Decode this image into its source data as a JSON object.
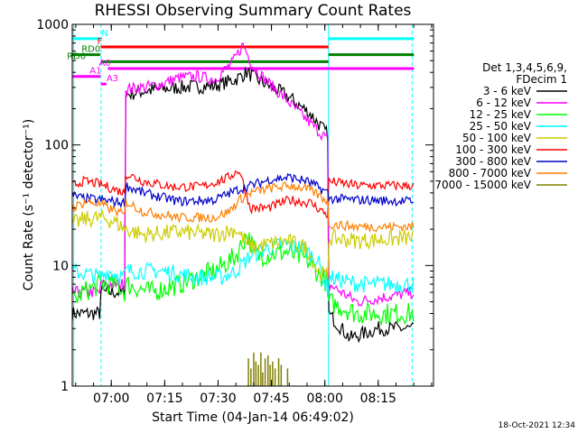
{
  "chart_data": {
    "type": "line",
    "title": "RHESSI Observing Summary Count Rates",
    "xlabel": "Start Time (04-Jan-14 06:49:02)",
    "ylabel": "Count Rate (s⁻¹ detector⁻¹)",
    "yscale": "log",
    "ylim": [
      1,
      1000
    ],
    "xlim_minutes_from_start": [
      0,
      101.5
    ],
    "x_ticks": [
      {
        "label": "07:00",
        "minute": 10.97
      },
      {
        "label": "07:15",
        "minute": 25.97
      },
      {
        "label": "07:30",
        "minute": 40.97
      },
      {
        "label": "07:45",
        "minute": 55.97
      },
      {
        "label": "08:00",
        "minute": 70.97
      },
      {
        "label": "08:15",
        "minute": 85.97
      }
    ],
    "y_ticks": [
      {
        "label": "1",
        "value": 1
      },
      {
        "label": "10",
        "value": 10
      },
      {
        "label": "100",
        "value": 100
      },
      {
        "label": "1000",
        "value": 1000
      }
    ],
    "legend": {
      "header_line1": "Det 1,3,4,5,6,9,",
      "header_line2": "FDecim 1",
      "placement": "right"
    },
    "series": [
      {
        "name": "3 - 6 keV",
        "color": "#000000",
        "noise": 0.06,
        "points": [
          [
            0,
            4
          ],
          [
            7.9,
            4
          ],
          [
            8,
            6
          ],
          [
            14.9,
            6
          ],
          [
            15,
            260
          ],
          [
            20,
            280
          ],
          [
            30,
            300
          ],
          [
            40,
            310
          ],
          [
            46,
            350
          ],
          [
            49,
            400
          ],
          [
            52,
            350
          ],
          [
            60,
            260
          ],
          [
            67,
            180
          ],
          [
            71.9,
            120
          ],
          [
            72,
            4
          ],
          [
            78,
            2.5
          ],
          [
            86,
            3
          ],
          [
            94,
            3
          ],
          [
            96,
            3
          ]
        ]
      },
      {
        "name": "6 - 12 keV",
        "color": "#ff00ff",
        "noise": 0.05,
        "points": [
          [
            0,
            6
          ],
          [
            7.9,
            6
          ],
          [
            8,
            7
          ],
          [
            14.9,
            7
          ],
          [
            15,
            290
          ],
          [
            20,
            300
          ],
          [
            25,
            320
          ],
          [
            30,
            360
          ],
          [
            35,
            370
          ],
          [
            40,
            350
          ],
          [
            45,
            480
          ],
          [
            48,
            680
          ],
          [
            51,
            440
          ],
          [
            55,
            330
          ],
          [
            60,
            240
          ],
          [
            66,
            160
          ],
          [
            71.9,
            110
          ],
          [
            72,
            7
          ],
          [
            80,
            5
          ],
          [
            96,
            6
          ]
        ]
      },
      {
        "name": "12 - 25 keV",
        "color": "#00ff00",
        "noise": 0.09,
        "points": [
          [
            0,
            5
          ],
          [
            3,
            6
          ],
          [
            8,
            7
          ],
          [
            12,
            7
          ],
          [
            14.9,
            6
          ],
          [
            15,
            7
          ],
          [
            22,
            6
          ],
          [
            30,
            7
          ],
          [
            40,
            9
          ],
          [
            46,
            12
          ],
          [
            49,
            18
          ],
          [
            52,
            12
          ],
          [
            60,
            13
          ],
          [
            66,
            11
          ],
          [
            71.9,
            7
          ],
          [
            72,
            5
          ],
          [
            80,
            4
          ],
          [
            96,
            4
          ]
        ]
      },
      {
        "name": "25 - 50 keV",
        "color": "#00ffff",
        "noise": 0.07,
        "points": [
          [
            0,
            9
          ],
          [
            4,
            8.5
          ],
          [
            8,
            8
          ],
          [
            10,
            9
          ],
          [
            14.9,
            8
          ],
          [
            15,
            9
          ],
          [
            25,
            9
          ],
          [
            35,
            8
          ],
          [
            42,
            8
          ],
          [
            46,
            9
          ],
          [
            50,
            12
          ],
          [
            55,
            14
          ],
          [
            60,
            15
          ],
          [
            65,
            14
          ],
          [
            69,
            11
          ],
          [
            71.9,
            6
          ],
          [
            72,
            8
          ],
          [
            80,
            7
          ],
          [
            96,
            7
          ]
        ]
      },
      {
        "name": "50 - 100 keV",
        "color": "#cccc00",
        "noise": 0.07,
        "points": [
          [
            0,
            22
          ],
          [
            3,
            24
          ],
          [
            8,
            25
          ],
          [
            12,
            23
          ],
          [
            14.9,
            20
          ],
          [
            15,
            20
          ],
          [
            20,
            18
          ],
          [
            30,
            19
          ],
          [
            40,
            18
          ],
          [
            46,
            20
          ],
          [
            50,
            14
          ],
          [
            55,
            15
          ],
          [
            60,
            16
          ],
          [
            66,
            14
          ],
          [
            69,
            9
          ],
          [
            71.9,
            8
          ],
          [
            72,
            17
          ],
          [
            80,
            16
          ],
          [
            96,
            17
          ]
        ]
      },
      {
        "name": "100 - 300 keV",
        "color": "#ff0000",
        "noise": 0.04,
        "points": [
          [
            0,
            46
          ],
          [
            3,
            50
          ],
          [
            7,
            48
          ],
          [
            14.9,
            40
          ],
          [
            15,
            58
          ],
          [
            20,
            50
          ],
          [
            28,
            45
          ],
          [
            36,
            45
          ],
          [
            43,
            52
          ],
          [
            47,
            62
          ],
          [
            50,
            30
          ],
          [
            55,
            30
          ],
          [
            61,
            35
          ],
          [
            67,
            33
          ],
          [
            71.9,
            26
          ],
          [
            72,
            50
          ],
          [
            80,
            46
          ],
          [
            96,
            46
          ]
        ]
      },
      {
        "name": "300 - 800 keV",
        "color": "#0000cc",
        "noise": 0.04,
        "points": [
          [
            0,
            38
          ],
          [
            3,
            36
          ],
          [
            8,
            35
          ],
          [
            14.9,
            33
          ],
          [
            15,
            46
          ],
          [
            20,
            40
          ],
          [
            30,
            34
          ],
          [
            40,
            35
          ],
          [
            46,
            42
          ],
          [
            50,
            46
          ],
          [
            56,
            52
          ],
          [
            61,
            54
          ],
          [
            66,
            50
          ],
          [
            71.9,
            40
          ],
          [
            72,
            36
          ],
          [
            80,
            35
          ],
          [
            96,
            34
          ]
        ]
      },
      {
        "name": "800 - 7000 keV",
        "color": "#ff7f00",
        "noise": 0.04,
        "points": [
          [
            0,
            30
          ],
          [
            4,
            34
          ],
          [
            8,
            32
          ],
          [
            14.9,
            26
          ],
          [
            15,
            34
          ],
          [
            20,
            28
          ],
          [
            30,
            25
          ],
          [
            40,
            25
          ],
          [
            44,
            28
          ],
          [
            47,
            35
          ],
          [
            50,
            40
          ],
          [
            56,
            44
          ],
          [
            62,
            46
          ],
          [
            67,
            42
          ],
          [
            71.9,
            34
          ],
          [
            72,
            22
          ],
          [
            80,
            21
          ],
          [
            96,
            21
          ]
        ]
      },
      {
        "name": "7000 - 15000 keV",
        "color": "#808000",
        "noise": 0,
        "points": []
      }
    ],
    "bursts_7000_15000": [
      [
        49.5,
        1.7
      ],
      [
        50.2,
        1.4
      ],
      [
        51,
        1.9
      ],
      [
        51.6,
        1.6
      ],
      [
        52.3,
        1.5
      ],
      [
        53,
        1.9
      ],
      [
        53.5,
        1.3
      ],
      [
        54.2,
        1.7
      ],
      [
        55,
        1.8
      ],
      [
        55.6,
        1.5
      ],
      [
        56.3,
        1.6
      ],
      [
        57,
        1.4
      ],
      [
        58,
        1.7
      ],
      [
        58.7,
        1.5
      ],
      [
        60.5,
        1.4
      ]
    ],
    "state_bars": [
      {
        "label": "N",
        "color": "#00ffff",
        "row_value": 760,
        "segments": [
          [
            0,
            7.9
          ],
          [
            72,
            96
          ]
        ],
        "label_minute": 8.2
      },
      {
        "label": "F",
        "color": "#ff0000",
        "row_value": 650,
        "segments": [
          [
            8,
            72
          ]
        ],
        "label_minute": 7
      },
      {
        "label": "RD0",
        "color": "#008000",
        "row_value": 560,
        "segments": [
          [
            0,
            7.9
          ],
          [
            72,
            96
          ]
        ],
        "label_minute": 2.6
      },
      {
        "label": "RD0",
        "color": "#008000",
        "row_value": 490,
        "segments": [
          [
            8,
            72
          ]
        ],
        "label_minute": -1.5
      },
      {
        "label": "A0",
        "color": "#ff00ff",
        "row_value": 430,
        "segments": [
          [
            10,
            96
          ]
        ],
        "label_minute": 7.5
      },
      {
        "label": "A1",
        "color": "#ff00ff",
        "row_value": 370,
        "segments": [
          [
            0,
            7.9
          ]
        ],
        "label_minute": 4.9
      },
      {
        "label": "A3",
        "color": "#ff00ff",
        "row_value": 320,
        "segments": [
          [
            8,
            9.6
          ]
        ],
        "label_minute": 9.6
      }
    ],
    "vertical_markers": [
      {
        "minute": 0.4,
        "style": "solid",
        "color": "#00ffff"
      },
      {
        "minute": 8.1,
        "style": "dashed",
        "color": "#00ffff"
      },
      {
        "minute": 72,
        "style": "solid",
        "color": "#00ffff"
      },
      {
        "minute": 95.5,
        "style": "dashed",
        "color": "#00ffff"
      }
    ],
    "grid": false
  },
  "stamp": "18-Oct-2021 12:34"
}
